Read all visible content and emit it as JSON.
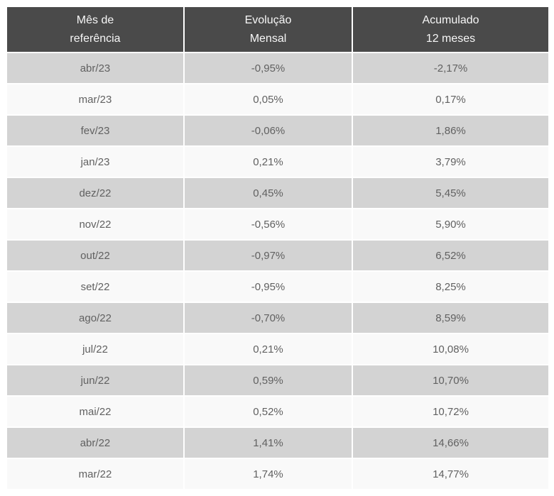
{
  "table": {
    "columns": [
      {
        "line1": "Mês de",
        "line2": "referência"
      },
      {
        "line1": "Evolução",
        "line2": "Mensal"
      },
      {
        "line1": "Acumulado",
        "line2": "12 meses"
      }
    ],
    "rows": [
      {
        "month": "abr/23",
        "monthly": "-0,95%",
        "accumulated": "-2,17%"
      },
      {
        "month": "mar/23",
        "monthly": "0,05%",
        "accumulated": "0,17%"
      },
      {
        "month": "fev/23",
        "monthly": "-0,06%",
        "accumulated": "1,86%"
      },
      {
        "month": "jan/23",
        "monthly": "0,21%",
        "accumulated": "3,79%"
      },
      {
        "month": "dez/22",
        "monthly": "0,45%",
        "accumulated": "5,45%"
      },
      {
        "month": "nov/22",
        "monthly": "-0,56%",
        "accumulated": "5,90%"
      },
      {
        "month": "out/22",
        "monthly": "-0,97%",
        "accumulated": "6,52%"
      },
      {
        "month": "set/22",
        "monthly": "-0,95%",
        "accumulated": "8,25%"
      },
      {
        "month": "ago/22",
        "monthly": "-0,70%",
        "accumulated": "8,59%"
      },
      {
        "month": "jul/22",
        "monthly": "0,21%",
        "accumulated": "10,08%"
      },
      {
        "month": "jun/22",
        "monthly": "0,59%",
        "accumulated": "10,70%"
      },
      {
        "month": "mai/22",
        "monthly": "0,52%",
        "accumulated": "10,72%"
      },
      {
        "month": "abr/22",
        "monthly": "1,41%",
        "accumulated": "14,66%"
      },
      {
        "month": "mar/22",
        "monthly": "1,74%",
        "accumulated": "14,77%"
      }
    ],
    "colors": {
      "header_bg": "#4a4a4a",
      "header_text": "#f7f7f7",
      "row_alt_bg": "#d3d3d3",
      "row_bg": "#f9f9f9",
      "cell_text": "#616161",
      "divider": "#ffffff"
    }
  }
}
